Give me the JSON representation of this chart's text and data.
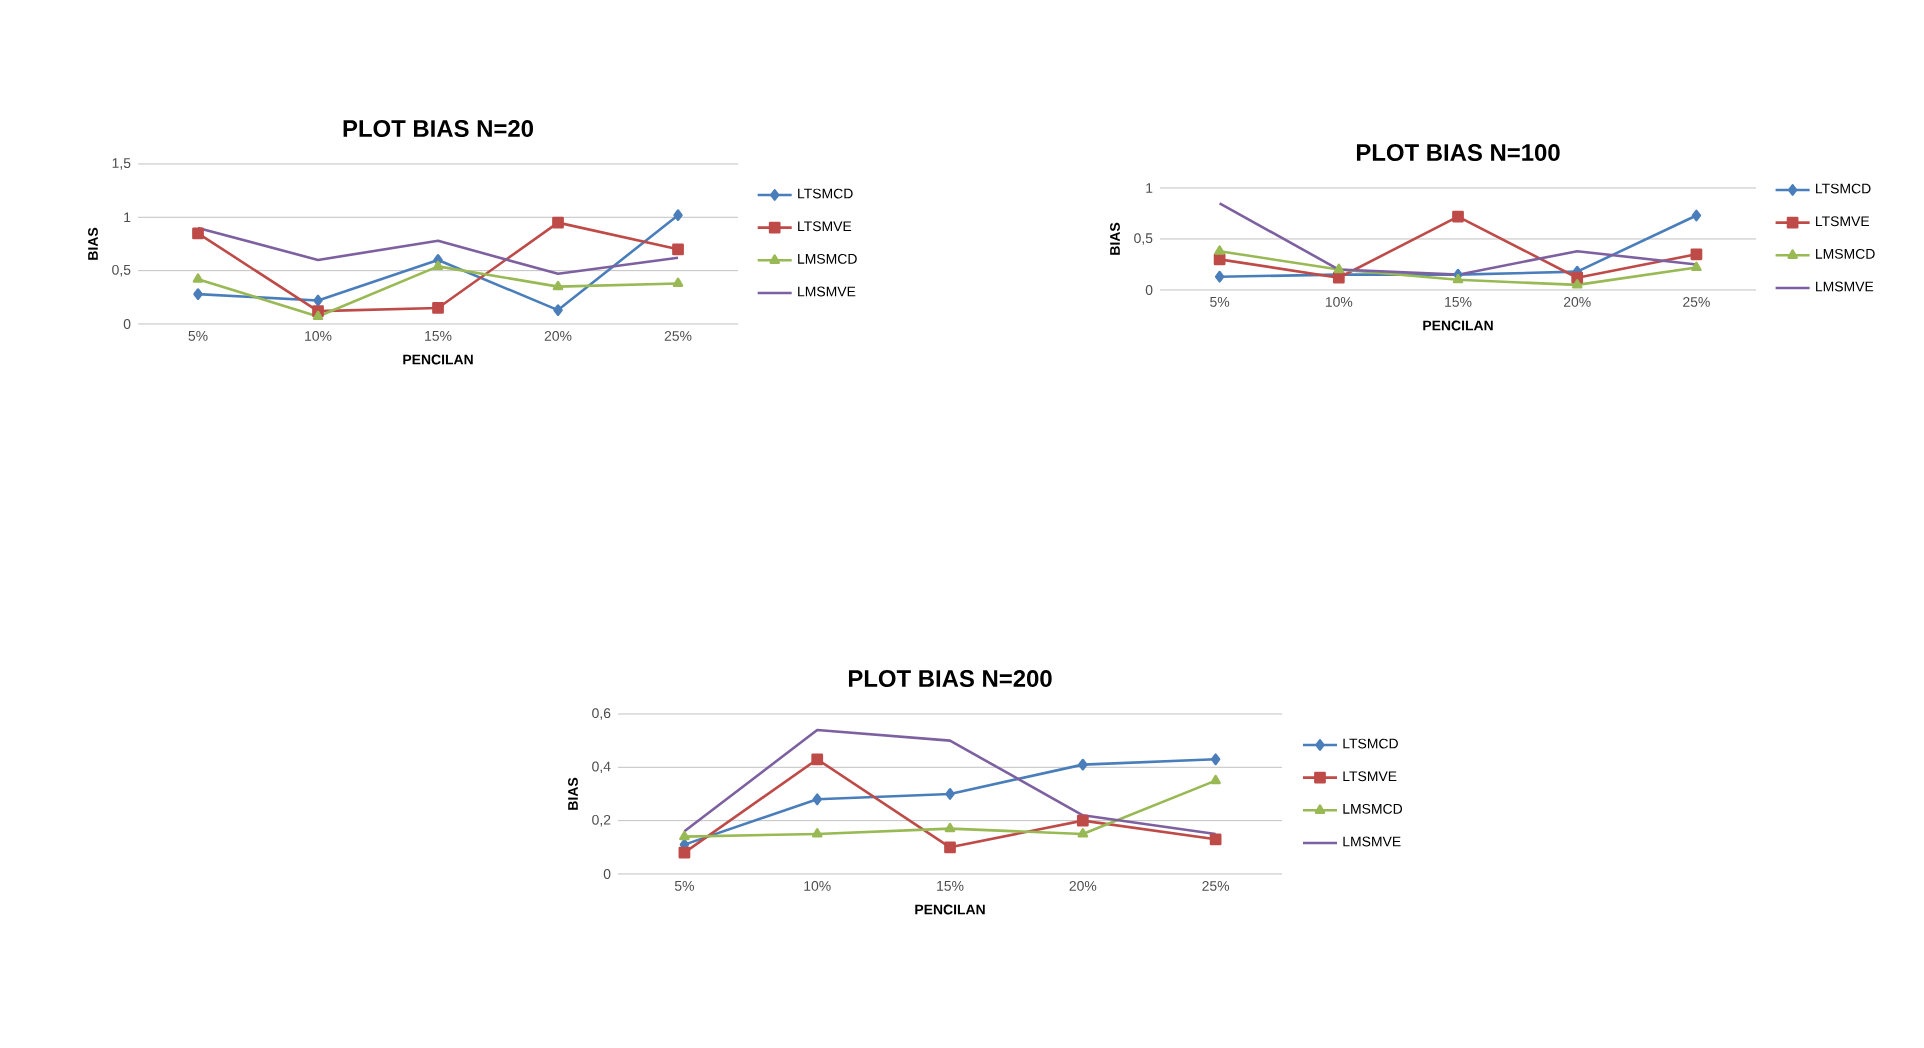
{
  "chart_data": [
    {
      "type": "line",
      "title": "PLOT BIAS N=20",
      "xlabel": "PENCILAN",
      "ylabel": "BIAS",
      "categories": [
        "5%",
        "10%",
        "15%",
        "20%",
        "25%"
      ],
      "ylim": [
        0,
        1.5
      ],
      "yticks": [
        0,
        {
          "value": 0.5,
          "label": "0,5"
        },
        1,
        {
          "value": 1.5,
          "label": "1,5"
        }
      ],
      "grid": "y",
      "legend": "right",
      "series": [
        {
          "name": "LTSMCD",
          "color": "#4a7ebb",
          "marker": "diamond",
          "values": [
            0.28,
            0.22,
            0.6,
            0.13,
            1.02
          ]
        },
        {
          "name": "LTSMVE",
          "color": "#be4b48",
          "marker": "square",
          "values": [
            0.85,
            0.12,
            0.15,
            0.95,
            0.7
          ]
        },
        {
          "name": "LMSMCD",
          "color": "#98b954",
          "marker": "triangle",
          "values": [
            0.42,
            0.07,
            0.54,
            0.35,
            0.38
          ]
        },
        {
          "name": "LMSMVE",
          "color": "#7d60a0",
          "marker": "none",
          "values": [
            0.9,
            0.6,
            0.78,
            0.47,
            0.62
          ]
        }
      ]
    },
    {
      "type": "line",
      "title": "PLOT BIAS N=100",
      "xlabel": "PENCILAN",
      "ylabel": "BIAS",
      "categories": [
        "5%",
        "10%",
        "15%",
        "20%",
        "25%"
      ],
      "ylim": [
        0,
        1
      ],
      "yticks": [
        0,
        {
          "value": 0.5,
          "label": "0,5"
        },
        1
      ],
      "grid": "y",
      "legend": "right",
      "series": [
        {
          "name": "LTSMCD",
          "color": "#4a7ebb",
          "marker": "diamond",
          "values": [
            0.13,
            0.15,
            0.15,
            0.18,
            0.73
          ]
        },
        {
          "name": "LTSMVE",
          "color": "#be4b48",
          "marker": "square",
          "values": [
            0.3,
            0.12,
            0.72,
            0.12,
            0.35
          ]
        },
        {
          "name": "LMSMCD",
          "color": "#98b954",
          "marker": "triangle",
          "values": [
            0.38,
            0.2,
            0.1,
            0.05,
            0.22
          ]
        },
        {
          "name": "LMSMVE",
          "color": "#7d60a0",
          "marker": "none",
          "values": [
            0.85,
            0.2,
            0.15,
            0.38,
            0.25
          ]
        }
      ]
    },
    {
      "type": "line",
      "title": "PLOT BIAS N=200",
      "xlabel": "PENCILAN",
      "ylabel": "BIAS",
      "categories": [
        "5%",
        "10%",
        "15%",
        "20%",
        "25%"
      ],
      "ylim": [
        0,
        0.6
      ],
      "yticks": [
        0,
        {
          "value": 0.2,
          "label": "0,2"
        },
        {
          "value": 0.4,
          "label": "0,4"
        },
        {
          "value": 0.6,
          "label": "0,6"
        }
      ],
      "grid": "y",
      "legend": "right",
      "series": [
        {
          "name": "LTSMCD",
          "color": "#4a7ebb",
          "marker": "diamond",
          "values": [
            0.11,
            0.28,
            0.3,
            0.41,
            0.43
          ]
        },
        {
          "name": "LTSMVE",
          "color": "#be4b48",
          "marker": "square",
          "values": [
            0.08,
            0.43,
            0.1,
            0.2,
            0.13
          ]
        },
        {
          "name": "LMSMCD",
          "color": "#98b954",
          "marker": "triangle",
          "values": [
            0.14,
            0.15,
            0.17,
            0.15,
            0.35
          ]
        },
        {
          "name": "LMSMVE",
          "color": "#7d60a0",
          "marker": "none",
          "values": [
            0.16,
            0.54,
            0.5,
            0.22,
            0.15
          ]
        }
      ]
    }
  ]
}
